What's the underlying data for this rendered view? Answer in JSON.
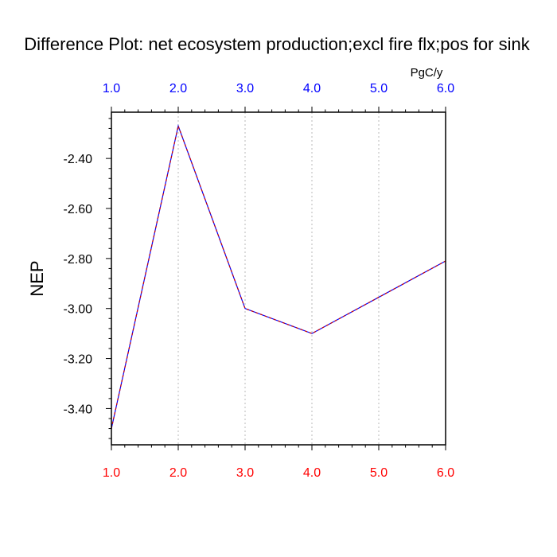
{
  "chart_data": {
    "type": "line",
    "title": "Difference Plot: net ecosystem production;excl fire flx;pos for sink",
    "units": "PgC/y",
    "ylabel": "NEP",
    "xlabel": "",
    "x": [
      1.0,
      2.0,
      3.0,
      4.0,
      5.0,
      6.0
    ],
    "xlim": [
      1.0,
      6.0
    ],
    "ylim": [
      -3.545,
      -2.215
    ],
    "x_tick_labels": [
      "1.0",
      "2.0",
      "3.0",
      "4.0",
      "5.0",
      "6.0"
    ],
    "y_ticks": [
      -3.4,
      -3.2,
      -3.0,
      -2.8,
      -2.6,
      -2.4
    ],
    "y_tick_labels": [
      "-3.40",
      "-3.20",
      "-3.00",
      "-2.80",
      "-2.60",
      "-2.40"
    ],
    "series": [
      {
        "values": [
          -3.48,
          -2.27,
          -3.0,
          -3.1,
          -2.955,
          -2.81
        ],
        "color": "#0000ff",
        "dash_color": "#cc0000"
      }
    ],
    "grid": "vertical dotted",
    "top_axis_color": "#0000ff",
    "bottom_axis_color": "#ff0000"
  }
}
